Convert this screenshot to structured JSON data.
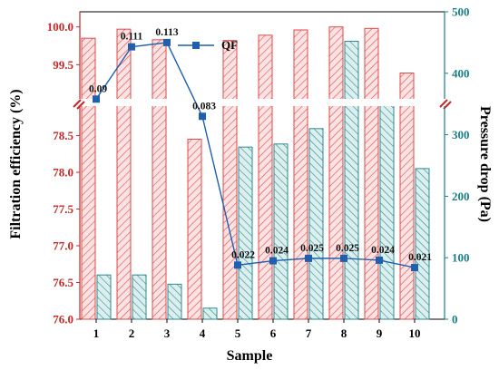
{
  "chart_data": {
    "type": "bar",
    "xlabel": "Sample",
    "ylabel_left": "Filtration efficiency (%)",
    "ylabel_right": "Pressure drop (Pa)",
    "categories": [
      "1",
      "2",
      "3",
      "4",
      "5",
      "6",
      "7",
      "8",
      "9",
      "10"
    ],
    "left_axis": {
      "broken": true,
      "lower_ticks": [
        "76.0",
        "76.5",
        "77.0",
        "77.5",
        "78.0",
        "78.5"
      ],
      "upper_ticks": [
        "99.5",
        "100.0"
      ]
    },
    "right_axis": {
      "ylim": [
        0,
        500
      ],
      "ticks": [
        "0",
        "100",
        "200",
        "300",
        "400",
        "500"
      ]
    },
    "series": [
      {
        "role": "filtration_efficiency",
        "axis": "left",
        "style": "red hatched bars",
        "values": [
          99.85,
          99.97,
          99.83,
          78.45,
          99.82,
          99.89,
          99.96,
          100.0,
          99.98,
          99.39
        ]
      },
      {
        "role": "pressure_drop",
        "axis": "right",
        "style": "teal hatched bars",
        "values": [
          72,
          72,
          57,
          18,
          280,
          285,
          310,
          452,
          357,
          245
        ]
      },
      {
        "name": "QF",
        "axis": "right",
        "style": "blue line with square markers",
        "values": [
          358,
          443,
          450,
          330,
          88,
          95,
          99,
          99,
          96,
          84
        ],
        "labels": [
          "0.09",
          "0.111",
          "0.113",
          "0.083",
          "0.022",
          "0.024",
          "0.025",
          "0.025",
          "0.024",
          "0.021"
        ]
      }
    ],
    "legend": {
      "position": "top-center",
      "entries": [
        "QF"
      ]
    },
    "colors": {
      "efficiency": "#e04a4a",
      "efficiency_fill": "#fbe3e3",
      "pressure": "#2e8a8f",
      "pressure_fill": "#dcefef",
      "qf": "#1f5fae",
      "right_axis": "#1a7f86"
    }
  }
}
